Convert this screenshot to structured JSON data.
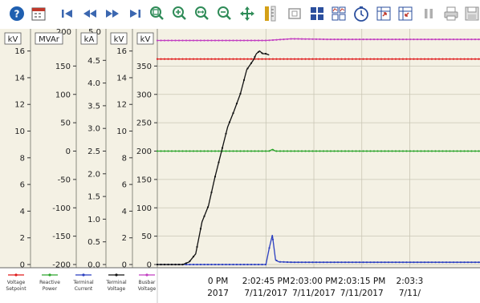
{
  "toolbar": {
    "icons": [
      {
        "name": "help-icon",
        "color": "#1f5fb0"
      },
      {
        "name": "calendar-icon",
        "color": "#c0392b"
      },
      {
        "name": "skip-first-icon",
        "color": "#3b67b0"
      },
      {
        "name": "rewind-icon",
        "color": "#3b67b0"
      },
      {
        "name": "fast-forward-icon",
        "color": "#3b67b0"
      },
      {
        "name": "skip-last-icon",
        "color": "#3b67b0"
      },
      {
        "name": "zoom-window-icon",
        "color": "#2e8b57"
      },
      {
        "name": "zoom-in-icon",
        "color": "#2e8b57"
      },
      {
        "name": "zoom-fit-icon",
        "color": "#2e8b57"
      },
      {
        "name": "zoom-out-icon",
        "color": "#2e8b57"
      },
      {
        "name": "pan-icon",
        "color": "#2e8b57"
      },
      {
        "name": "scale-icon",
        "color": "#d4a017"
      },
      {
        "name": "table-icon",
        "color": "#9a9a9a"
      },
      {
        "name": "grid-layout-icon",
        "color": "#2b4f9e"
      },
      {
        "name": "multi-chart-icon",
        "color": "#2b4f9e"
      },
      {
        "name": "clock-icon",
        "color": "#2b4f9e"
      },
      {
        "name": "export-icon",
        "color": "#2b4f9e"
      },
      {
        "name": "import-icon",
        "color": "#2b4f9e"
      },
      {
        "name": "pause-icon",
        "color": "#b0b0b0"
      },
      {
        "name": "print-icon",
        "color": "#909090"
      },
      {
        "name": "save-icon",
        "color": "#909090"
      }
    ]
  },
  "chart_data": {
    "type": "line",
    "title": "",
    "grid": true,
    "legend_position": "bottom-left",
    "x_tick_labels": [
      {
        "time": "0 PM",
        "date": "2017"
      },
      {
        "time": "2:02:45 PM",
        "date": "7/11/2017"
      },
      {
        "time": "2:03:00 PM",
        "date": "7/11/2017"
      },
      {
        "time": "2:03:15 PM",
        "date": "7/11/2017"
      },
      {
        "time": "2:03:3",
        "date": "7/11/"
      }
    ],
    "xlim_seconds": [
      -34,
      67
    ],
    "axes": [
      {
        "id": "voltage_setpoint",
        "unit": "kV",
        "ylim": [
          0,
          17
        ],
        "ticks": [
          "0",
          "2",
          "4",
          "6",
          "8",
          "10",
          "12",
          "14",
          "16"
        ],
        "top_partial": ""
      },
      {
        "id": "reactive_power",
        "unit": "MVAr",
        "ylim": [
          -200,
          200
        ],
        "ticks": [
          "-200",
          "-150",
          "-100",
          "-50",
          "0",
          "50",
          "100",
          "150"
        ],
        "top_partial": "200"
      },
      {
        "id": "terminal_current",
        "unit": "kA",
        "ylim": [
          0,
          5
        ],
        "ticks": [
          "0.0",
          "0.5",
          "1.0",
          "1.5",
          "2.0",
          "2.5",
          "3.0",
          "3.5",
          "4.0",
          "4.5"
        ],
        "top_partial": "5.0"
      },
      {
        "id": "terminal_voltage",
        "unit": "kV",
        "ylim": [
          0,
          17
        ],
        "ticks": [
          "0",
          "2",
          "4",
          "6",
          "8",
          "10",
          "12",
          "14",
          "16"
        ],
        "top_partial": ""
      },
      {
        "id": "busbar_voltage",
        "unit": "kV",
        "ylim": [
          0,
          400
        ],
        "ticks": [
          "0",
          "50",
          "100",
          "150",
          "200",
          "250",
          "300",
          "350"
        ],
        "top_partial": ""
      }
    ],
    "series": [
      {
        "name": "Voltage Setpoint",
        "axis": "voltage_setpoint",
        "color": "#e01b1b",
        "x": [
          -34,
          67
        ],
        "y": [
          15.4,
          15.4
        ]
      },
      {
        "name": "Reactive Power",
        "axis": "reactive_power",
        "color": "#2ca52c",
        "x": [
          -34,
          1,
          2,
          3,
          67
        ],
        "y": [
          0,
          0,
          3,
          0,
          0
        ]
      },
      {
        "name": "Terminal Current",
        "axis": "terminal_current",
        "color": "#2b3fc0",
        "x": [
          -34,
          0,
          1,
          2,
          3,
          4,
          8,
          67
        ],
        "y": [
          0,
          0,
          0.35,
          0.65,
          0.1,
          0.06,
          0.05,
          0.05
        ]
      },
      {
        "name": "Terminal Voltage",
        "axis": "terminal_voltage",
        "color": "#111111",
        "x": [
          -34,
          -30,
          -28,
          -26,
          -24,
          -22,
          -20,
          -18,
          -16,
          -14,
          -12,
          -10,
          -8,
          -6,
          -4,
          -3,
          -2,
          -1,
          0,
          1
        ],
        "y": [
          0,
          0,
          0,
          0,
          0.2,
          0.8,
          3.2,
          4.4,
          6.5,
          8.4,
          10.3,
          11.5,
          12.8,
          14.6,
          15.3,
          15.8,
          16.0,
          15.8,
          15.8,
          15.7
        ]
      },
      {
        "name": "Busbar Voltage",
        "axis": "busbar_voltage",
        "color": "#c23fc2",
        "x": [
          -34,
          0,
          8,
          20,
          67
        ],
        "y": [
          395,
          395,
          398,
          397,
          397
        ]
      }
    ]
  }
}
